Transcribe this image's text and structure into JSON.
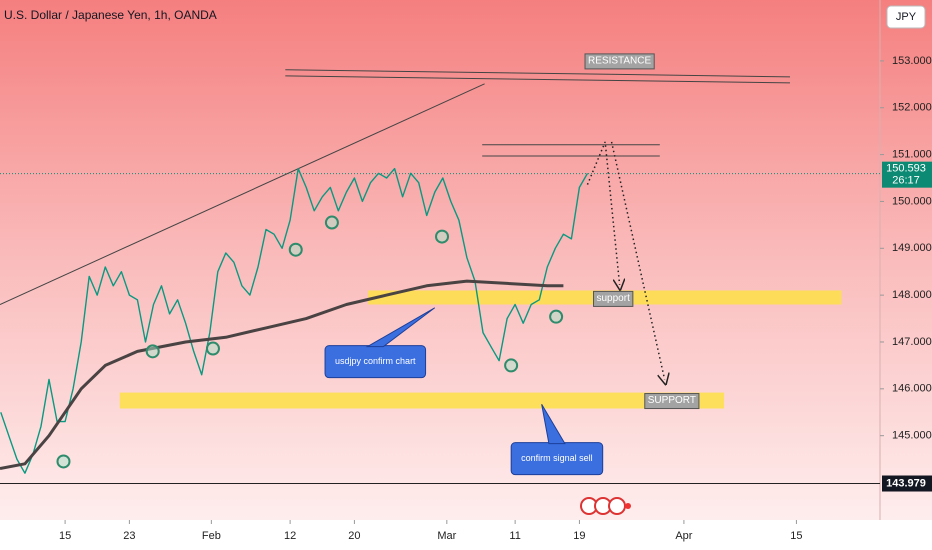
{
  "chart_data": {
    "type": "line",
    "title": "U.S. Dollar / Japanese Yen, 1h, OANDA",
    "currency": "JPY",
    "xlim": [
      6.9,
      116.4
    ],
    "ylim": [
      143.2,
      154.3
    ],
    "xticks": [
      {
        "value": 15,
        "label": "15"
      },
      {
        "value": 23,
        "label": "23"
      },
      {
        "value": 33.2,
        "label": "Feb"
      },
      {
        "value": 43,
        "label": "12"
      },
      {
        "value": 51,
        "label": "20"
      },
      {
        "value": 62.5,
        "label": "Mar"
      },
      {
        "value": 71,
        "label": "11"
      },
      {
        "value": 79,
        "label": "19"
      },
      {
        "value": 92,
        "label": "Apr"
      },
      {
        "value": 106,
        "label": "15"
      }
    ],
    "yticks": [
      {
        "value": 145,
        "label": "145.000"
      },
      {
        "value": 146,
        "label": "146.000"
      },
      {
        "value": 147,
        "label": "147.000"
      },
      {
        "value": 148,
        "label": "148.000"
      },
      {
        "value": 149,
        "label": "149.000"
      },
      {
        "value": 150,
        "label": "150.000"
      },
      {
        "value": 151,
        "label": "151.000"
      },
      {
        "value": 152,
        "label": "152.000"
      },
      {
        "value": 153,
        "label": "153.000"
      }
    ],
    "series": [
      {
        "color": "#089981",
        "x": [
          7,
          8,
          9,
          10,
          11,
          12,
          13,
          14,
          15,
          16,
          17,
          18,
          19,
          20,
          21,
          22,
          23,
          24,
          25,
          26,
          27,
          28,
          29,
          30,
          31,
          32,
          33,
          34,
          35,
          36,
          37,
          38,
          39,
          40,
          41,
          42,
          43,
          44,
          45,
          46,
          47,
          48,
          49,
          50,
          51,
          52,
          53,
          54,
          55,
          56,
          57,
          58,
          59,
          60,
          61,
          62,
          63,
          64,
          65,
          66,
          67,
          68,
          69,
          70,
          71,
          72,
          73,
          74,
          75,
          76,
          77,
          78,
          79,
          80
        ],
        "values": [
          145.5,
          145.0,
          144.5,
          144.2,
          144.6,
          145.2,
          146.2,
          145.3,
          145.3,
          146.0,
          147.0,
          148.4,
          148.0,
          148.6,
          148.2,
          148.5,
          148.0,
          147.9,
          147.0,
          147.8,
          148.2,
          147.6,
          147.9,
          147.4,
          146.8,
          146.3,
          147.2,
          148.5,
          148.9,
          148.7,
          148.2,
          148.0,
          148.6,
          149.4,
          149.3,
          149.0,
          149.6,
          150.7,
          150.3,
          149.8,
          150.1,
          150.3,
          149.8,
          150.2,
          150.5,
          150.0,
          150.4,
          150.6,
          150.5,
          150.7,
          150.1,
          150.6,
          150.4,
          149.7,
          150.2,
          150.5,
          150.0,
          149.6,
          148.8,
          148.3,
          147.2,
          146.9,
          146.6,
          147.5,
          147.8,
          147.4,
          147.8,
          147.9,
          148.6,
          149.0,
          149.3,
          149.2,
          150.3,
          150.6
        ]
      },
      {
        "color": "#4a4343",
        "x": [
          6.9,
          10,
          13,
          17,
          20,
          24,
          30,
          35,
          40,
          45,
          50,
          55,
          60,
          65,
          70,
          75,
          77
        ],
        "values": [
          144.3,
          144.4,
          145.0,
          146.0,
          146.5,
          146.8,
          147.0,
          147.1,
          147.3,
          147.5,
          147.8,
          148.0,
          148.2,
          148.3,
          148.25,
          148.2,
          148.2
        ]
      }
    ],
    "current_price": 150.593,
    "countdown": "26:17",
    "low_line": 143.979,
    "lines": [
      {
        "x": [
          42.4,
          105.2
        ],
        "y": [
          152.81,
          152.66
        ]
      },
      {
        "x": [
          42.4,
          105.2
        ],
        "y": [
          152.68,
          152.53
        ]
      },
      {
        "x": [
          6.9,
          67.2
        ],
        "y": [
          147.8,
          152.51
        ]
      },
      {
        "x": [
          66.9,
          89.0
        ],
        "y": [
          151.21,
          151.21
        ]
      },
      {
        "x": [
          66.9,
          89.0
        ],
        "y": [
          150.97,
          150.97
        ]
      }
    ],
    "zones": [
      {
        "x": [
          52.7,
          111.6
        ],
        "y": [
          147.8,
          148.1
        ]
      },
      {
        "x": [
          21.8,
          97.0
        ],
        "y": [
          145.58,
          145.92
        ]
      }
    ],
    "labels": [
      {
        "text": "RESISTANCE",
        "x": 84.0,
        "y": 153.0
      },
      {
        "text": "support",
        "x": 83.2,
        "y": 147.93
      },
      {
        "text": "SUPPORT",
        "x": 90.5,
        "y": 145.75
      }
    ],
    "markers": [
      {
        "x": 14.8,
        "y": 144.45
      },
      {
        "x": 25.9,
        "y": 146.8
      },
      {
        "x": 33.4,
        "y": 146.86
      },
      {
        "x": 43.7,
        "y": 148.97
      },
      {
        "x": 48.2,
        "y": 149.55
      },
      {
        "x": 61.9,
        "y": 149.25
      },
      {
        "x": 70.5,
        "y": 146.5
      },
      {
        "x": 76.1,
        "y": 147.54
      }
    ],
    "callouts": [
      {
        "text": "usdjpy confirm chart",
        "x": 53.6,
        "y": 146.58,
        "tip_x": 61.0,
        "tip_y": 147.73
      },
      {
        "text": "confirm signal sell",
        "x": 76.2,
        "y": 144.51,
        "tip_x": 74.3,
        "tip_y": 145.67
      }
    ],
    "arrows": [
      {
        "x": [
          80.0,
          82.2,
          84.0
        ],
        "y": [
          150.36,
          151.27,
          148.22
        ]
      },
      {
        "x": [
          83.0,
          89.6
        ],
        "y": [
          151.27,
          146.2
        ]
      }
    ]
  }
}
